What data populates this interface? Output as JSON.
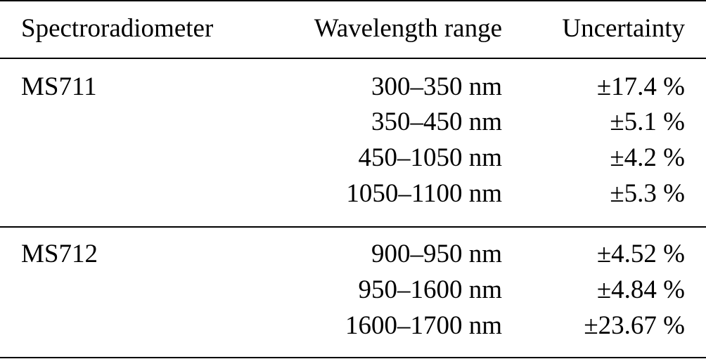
{
  "table": {
    "headers": {
      "spectroradiometer": "Spectroradiometer",
      "wavelength_range": "Wavelength range",
      "uncertainty": "Uncertainty"
    },
    "groups": [
      {
        "name": "MS711",
        "rows": [
          {
            "range": "300–350 nm",
            "uncertainty": "±17.4 %"
          },
          {
            "range": "350–450 nm",
            "uncertainty": "±5.1 %"
          },
          {
            "range": "450–1050 nm",
            "uncertainty": "±4.2 %"
          },
          {
            "range": "1050–1100 nm",
            "uncertainty": "±5.3 %"
          }
        ]
      },
      {
        "name": "MS712",
        "rows": [
          {
            "range": "900–950 nm",
            "uncertainty": "±4.52 %"
          },
          {
            "range": "950–1600 nm",
            "uncertainty": "±4.84 %"
          },
          {
            "range": "1600–1700 nm",
            "uncertainty": "±23.67 %"
          }
        ]
      }
    ]
  }
}
